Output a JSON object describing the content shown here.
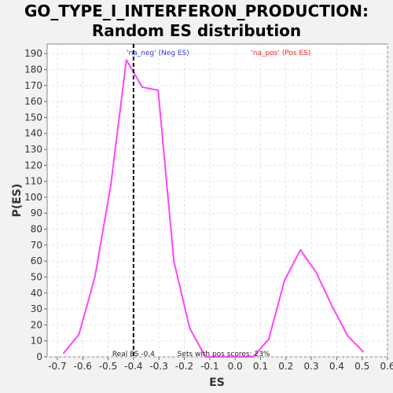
{
  "chart_data": {
    "type": "line",
    "title_line1": "GO_TYPE_I_INTERFERON_PRODUCTION:",
    "title_line2": "Random ES distribution",
    "xlabel": "ES",
    "ylabel": "P(ES)",
    "xlim": [
      -0.74,
      0.6
    ],
    "ylim": [
      0,
      196
    ],
    "xticks": [
      -0.7,
      -0.6,
      -0.5,
      -0.4,
      -0.3,
      -0.2,
      -0.1,
      0.0,
      0.1,
      0.2,
      0.3,
      0.4,
      0.5,
      0.6
    ],
    "xtick_labels": [
      "-0.7",
      "-0.6",
      "-0.5",
      "-0.4",
      "-0.3",
      "-0.2",
      "-0.1",
      "0.0",
      "0.1",
      "0.2",
      "0.3",
      "0.4",
      "0.5",
      "0.6"
    ],
    "yticks": [
      0,
      10,
      20,
      30,
      40,
      50,
      60,
      70,
      80,
      90,
      100,
      110,
      120,
      130,
      140,
      150,
      160,
      170,
      180,
      190
    ],
    "ytick_labels": [
      "0",
      "10",
      "20",
      "30",
      "40",
      "50",
      "60",
      "70",
      "80",
      "90",
      "100",
      "110",
      "120",
      "130",
      "140",
      "150",
      "160",
      "170",
      "180",
      "190"
    ],
    "grid": true,
    "series": [
      {
        "color": "#ff44ff",
        "x": [
          -0.677,
          -0.615,
          -0.552,
          -0.49,
          -0.428,
          -0.366,
          -0.303,
          -0.241,
          -0.179,
          -0.117,
          -0.054,
          0.008,
          0.07,
          0.132,
          0.195,
          0.257,
          0.319,
          0.381,
          0.444,
          0.506
        ],
        "y": [
          2,
          14,
          50,
          107,
          186,
          169,
          167,
          60,
          18,
          0,
          0,
          0,
          0,
          11,
          48,
          67,
          53,
          32,
          13,
          3
        ]
      }
    ],
    "real_es": -0.4,
    "real_es_line_color": "#000000",
    "legend_neg": "'na_neg' (Neg ES)",
    "legend_pos": "'na_pos' (Pos ES)",
    "legend_neg_color": "#3333ff",
    "legend_pos_color": "#ff2222",
    "annotation_real_es": "Real ES -0.4",
    "annotation_sets": "Sets with pos scores: 23%"
  }
}
